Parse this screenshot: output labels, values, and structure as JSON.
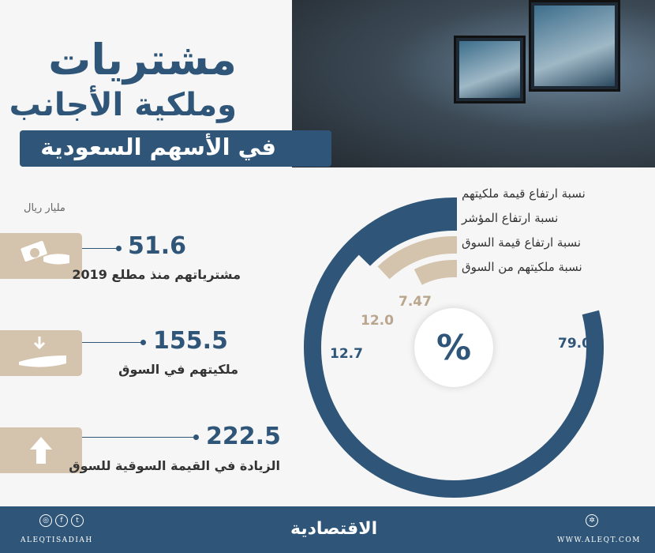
{
  "title": {
    "line1": "مشتريات",
    "line2": "وملكية الأجانب",
    "line3": "في الأسهم السعودية"
  },
  "unit_label": "مليار ريال",
  "stats": [
    {
      "value": "51.6",
      "caption": "مشترياتهم منذ مطلع 2019",
      "icon": "money-hand-icon"
    },
    {
      "value": "155.5",
      "caption": "ملكيتهم في السوق",
      "icon": "receiving-hand-icon"
    },
    {
      "value": "222.5",
      "caption": "الزيادة في القيمة السوقية للسوق",
      "icon": "arrow-up-icon"
    }
  ],
  "chart_data": {
    "type": "radial-bar",
    "unit": "%",
    "series": [
      {
        "name": "نسبة ارتفاع قيمة ملكيتهم",
        "value": 79.0,
        "label": "79.0",
        "color": "#2f5679"
      },
      {
        "name": "نسبة ارتفاع المؤشر",
        "value": 12.7,
        "label": "12.7",
        "color": "#2f5679"
      },
      {
        "name": "نسبة ارتفاع قيمة السوق",
        "value": 12.0,
        "label": "12.0",
        "color": "#d4c3ad"
      },
      {
        "name": "نسبة ملكيتهم من السوق",
        "value": 7.47,
        "label": "7.47",
        "color": "#d4c3ad"
      }
    ]
  },
  "colors": {
    "navy": "#2f5679",
    "beige": "#d4c3ad"
  },
  "footer": {
    "handle": "ALEQTISADIAH",
    "logo": "الاقتصادية",
    "website": "WWW.ALEQT.COM",
    "social": [
      "instagram-icon",
      "facebook-icon",
      "twitter-icon"
    ]
  }
}
